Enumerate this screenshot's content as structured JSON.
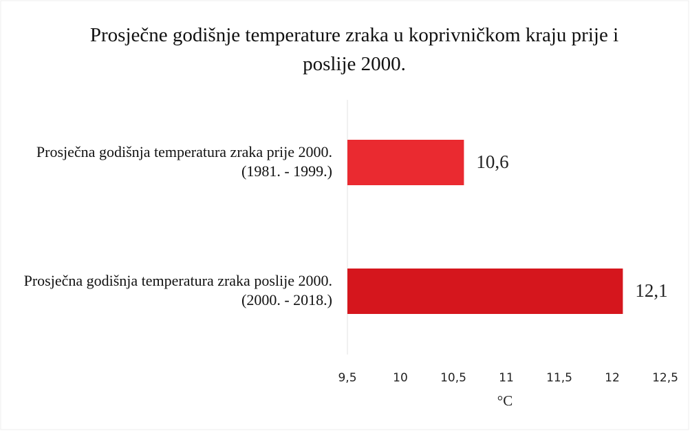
{
  "chart_data": {
    "type": "bar",
    "orientation": "horizontal",
    "title": "Prosječne godišnje temperature zraka u koprivničkom kraju prije i poslije 2000.",
    "categories": [
      "Prosječna godišnja temperatura zraka prije 2000. (1981. - 1999.)",
      "Prosječna godišnja temperatura zraka poslije 2000. (2000. - 2018.)"
    ],
    "values": [
      10.6,
      12.1
    ],
    "value_labels": [
      "10,6",
      "12,1"
    ],
    "colors": [
      "#ea2a30",
      "#d5161d"
    ],
    "value_label_colors": [
      "#111111",
      "#b8262b"
    ],
    "xlabel": "°C",
    "xlim": [
      9.5,
      12.5
    ],
    "xticks": [
      {
        "value": 9.5,
        "label": "9,5"
      },
      10,
      {
        "value": 10.5,
        "label": "10,5"
      },
      11,
      {
        "value": 11.5,
        "label": "11,5"
      },
      12,
      {
        "value": 12.5,
        "label": "12,5"
      }
    ],
    "grid": false
  }
}
